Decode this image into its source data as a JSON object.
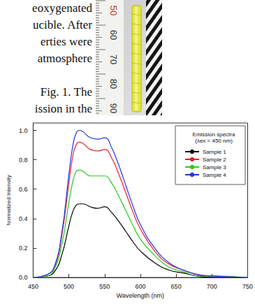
{
  "text_lines": [
    "eoxygenated",
    "ucible. After",
    "erties were",
    "atmosphere",
    "Fig. 1. The",
    "ission in the"
  ],
  "photo": {
    "ruler_labels": [
      50,
      60,
      70,
      80,
      90
    ]
  },
  "chart_data": {
    "type": "line",
    "title": "Emission spectra",
    "subtitle": "(λex = 450 nm)",
    "x_label": "Wavelength (nm)",
    "y_label": "Normalized Intensity",
    "x": [
      450,
      470,
      480,
      490,
      500,
      505,
      510,
      515,
      520,
      530,
      540,
      550,
      560,
      570,
      580,
      590,
      600,
      620,
      640,
      660,
      680,
      700,
      750
    ],
    "series": [
      {
        "name": "Sample 1",
        "color": "#000000",
        "values": [
          0,
          0.01,
          0.04,
          0.15,
          0.35,
          0.44,
          0.49,
          0.5,
          0.5,
          0.48,
          0.47,
          0.48,
          0.44,
          0.38,
          0.31,
          0.24,
          0.18,
          0.1,
          0.05,
          0.03,
          0.01,
          0,
          0
        ]
      },
      {
        "name": "Sample 2",
        "color": "#e8202a",
        "values": [
          0,
          0.02,
          0.07,
          0.28,
          0.64,
          0.81,
          0.9,
          0.92,
          0.91,
          0.87,
          0.86,
          0.87,
          0.81,
          0.7,
          0.57,
          0.44,
          0.33,
          0.18,
          0.09,
          0.05,
          0.02,
          0.01,
          0
        ]
      },
      {
        "name": "Sample 3",
        "color": "#22cc22",
        "values": [
          0,
          0.01,
          0.06,
          0.22,
          0.51,
          0.64,
          0.72,
          0.73,
          0.72,
          0.69,
          0.69,
          0.69,
          0.64,
          0.55,
          0.45,
          0.35,
          0.26,
          0.15,
          0.07,
          0.04,
          0.01,
          0.01,
          0
        ]
      },
      {
        "name": "Sample 4",
        "color": "#2233ee",
        "values": [
          0,
          0.02,
          0.08,
          0.3,
          0.7,
          0.88,
          0.98,
          1.0,
          0.99,
          0.95,
          0.94,
          0.95,
          0.88,
          0.76,
          0.62,
          0.48,
          0.36,
          0.2,
          0.1,
          0.05,
          0.02,
          0.01,
          0
        ]
      }
    ],
    "xlim": [
      450,
      750
    ],
    "xticks": [
      450,
      500,
      550,
      600,
      650,
      700,
      750
    ],
    "ylim": [
      0,
      1.05
    ],
    "yticks": [
      {
        "value": 0,
        "label": "0.0"
      },
      0.2,
      0.4,
      0.6,
      0.8,
      {
        "value": 1,
        "label": "1.0"
      }
    ],
    "legend": "top-right",
    "grid": false,
    "line_style": "solid"
  }
}
